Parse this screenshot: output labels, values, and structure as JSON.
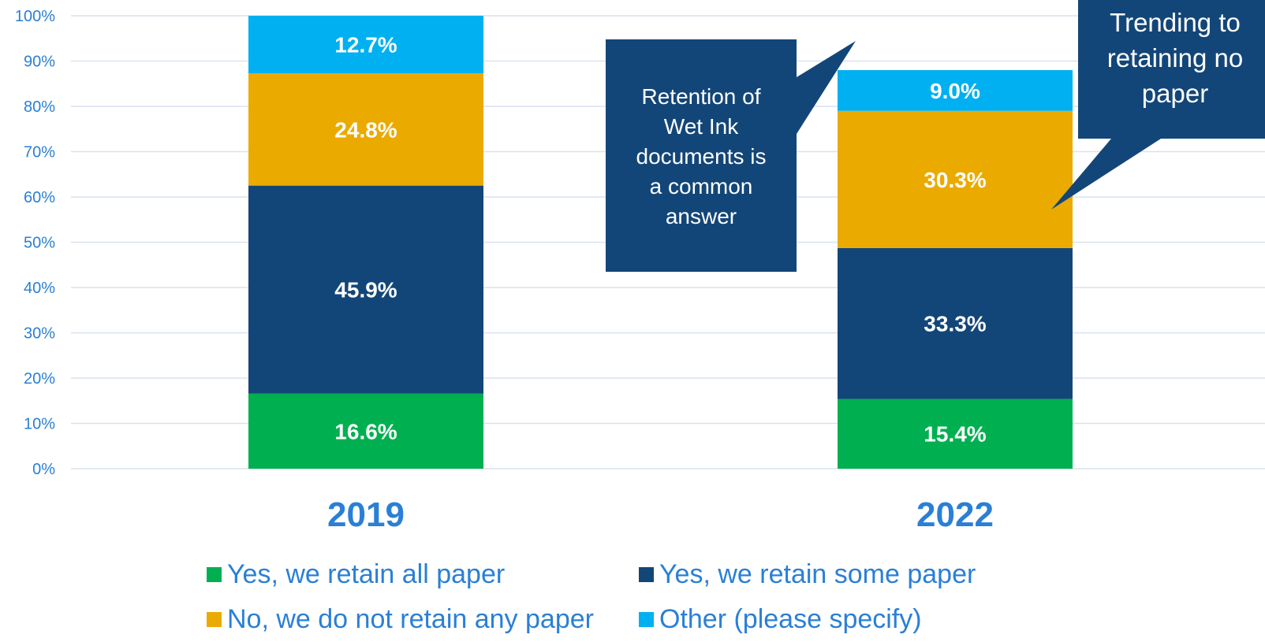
{
  "chart_data": {
    "type": "bar",
    "stacked": true,
    "categories": [
      "2019",
      "2022"
    ],
    "series": [
      {
        "name": "Yes, we retain all paper",
        "values": [
          16.6,
          15.4
        ],
        "color": "#00b050"
      },
      {
        "name": "Yes, we retain some paper",
        "values": [
          45.9,
          33.3
        ],
        "color": "#134678"
      },
      {
        "name": "No, we do not retain any paper",
        "values": [
          24.8,
          30.3
        ],
        "color": "#ebaa00"
      },
      {
        "name": "Other (please specify)",
        "values": [
          12.7,
          9.0
        ],
        "color": "#00b0f0"
      }
    ],
    "data_labels": [
      [
        "16.6%",
        "15.4%"
      ],
      [
        "45.9%",
        "33.3%"
      ],
      [
        "24.8%",
        "30.3%"
      ],
      [
        "12.7%",
        "9.0%"
      ]
    ],
    "y_ticks": [
      "0%",
      "10%",
      "20%",
      "30%",
      "40%",
      "50%",
      "60%",
      "70%",
      "80%",
      "90%",
      "100%"
    ],
    "ylim": [
      0,
      100
    ],
    "grid": true,
    "legend_position": "bottom",
    "annotations": [
      {
        "text_lines": [
          "Retention of",
          "Wet Ink",
          "documents is",
          "a common",
          "answer"
        ],
        "points_to": "2022 Other (please specify)"
      },
      {
        "text_lines": [
          "Trending to",
          "retaining no",
          "paper"
        ],
        "points_to": "2022 No, we do not retain any paper"
      }
    ]
  },
  "colors": {
    "axis_text": "#2a7fd6",
    "grid": "#d9e2ef",
    "callout_fill": "#134678"
  }
}
